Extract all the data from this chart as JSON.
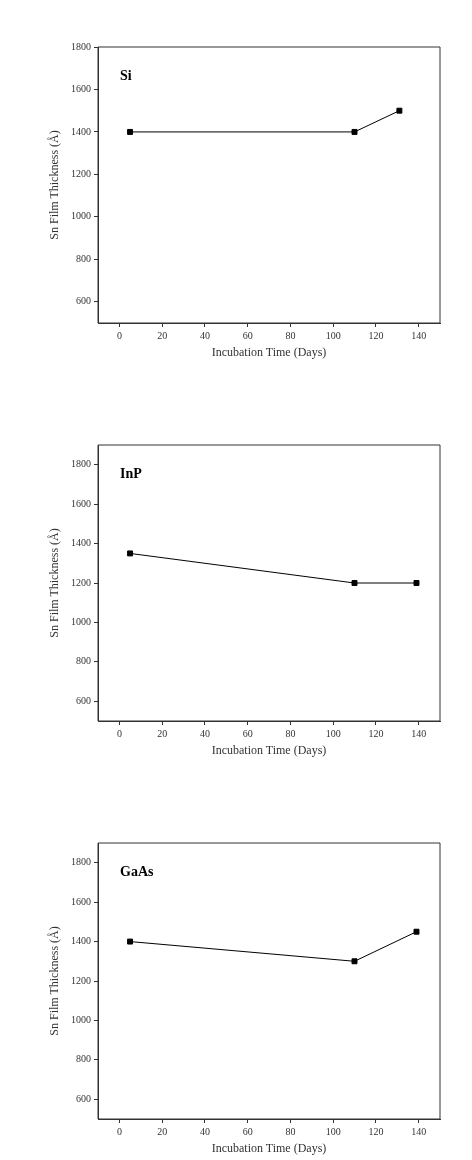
{
  "chart_data": [
    {
      "type": "line",
      "annotations": [
        "Si"
      ],
      "xlabel": "Incubation Time (Days)",
      "ylabel": "Sn Film Thickness (Å)",
      "xlim": [
        -10,
        150
      ],
      "xticks": [
        0,
        20,
        40,
        60,
        80,
        100,
        120,
        140
      ],
      "ylim": [
        500,
        1800
      ],
      "yticks": [
        600,
        800,
        1000,
        1200,
        1400,
        1600,
        1800
      ],
      "marker": "square",
      "legend": false,
      "series": [
        {
          "color": "#000000",
          "x": [
            5,
            110,
            131
          ],
          "values": [
            1400,
            1400,
            1500
          ]
        }
      ]
    },
    {
      "type": "line",
      "annotations": [
        "InP"
      ],
      "xlabel": "Incubation Time (Days)",
      "ylabel": "Sn Film Thickness (Å)",
      "xlim": [
        -10,
        150
      ],
      "xticks": [
        0,
        20,
        40,
        60,
        80,
        100,
        120,
        140
      ],
      "ylim": [
        500,
        1900
      ],
      "yticks": [
        600,
        800,
        1000,
        1200,
        1400,
        1600,
        1800
      ],
      "marker": "square",
      "legend": false,
      "series": [
        {
          "color": "#000000",
          "x": [
            5,
            110,
            139
          ],
          "values": [
            1350,
            1200,
            1200
          ]
        }
      ]
    },
    {
      "type": "line",
      "annotations": [
        "GaAs"
      ],
      "xlabel": "Incubation Time (Days)",
      "ylabel": "Sn Film Thickness (Å)",
      "xlim": [
        -10,
        150
      ],
      "xticks": [
        0,
        20,
        40,
        60,
        80,
        100,
        120,
        140
      ],
      "ylim": [
        500,
        1900
      ],
      "yticks": [
        600,
        800,
        1000,
        1200,
        1400,
        1600,
        1800
      ],
      "marker": "square",
      "legend": false,
      "series": [
        {
          "color": "#000000",
          "x": [
            5,
            110,
            139
          ],
          "values": [
            1400,
            1300,
            1450
          ]
        }
      ]
    }
  ]
}
